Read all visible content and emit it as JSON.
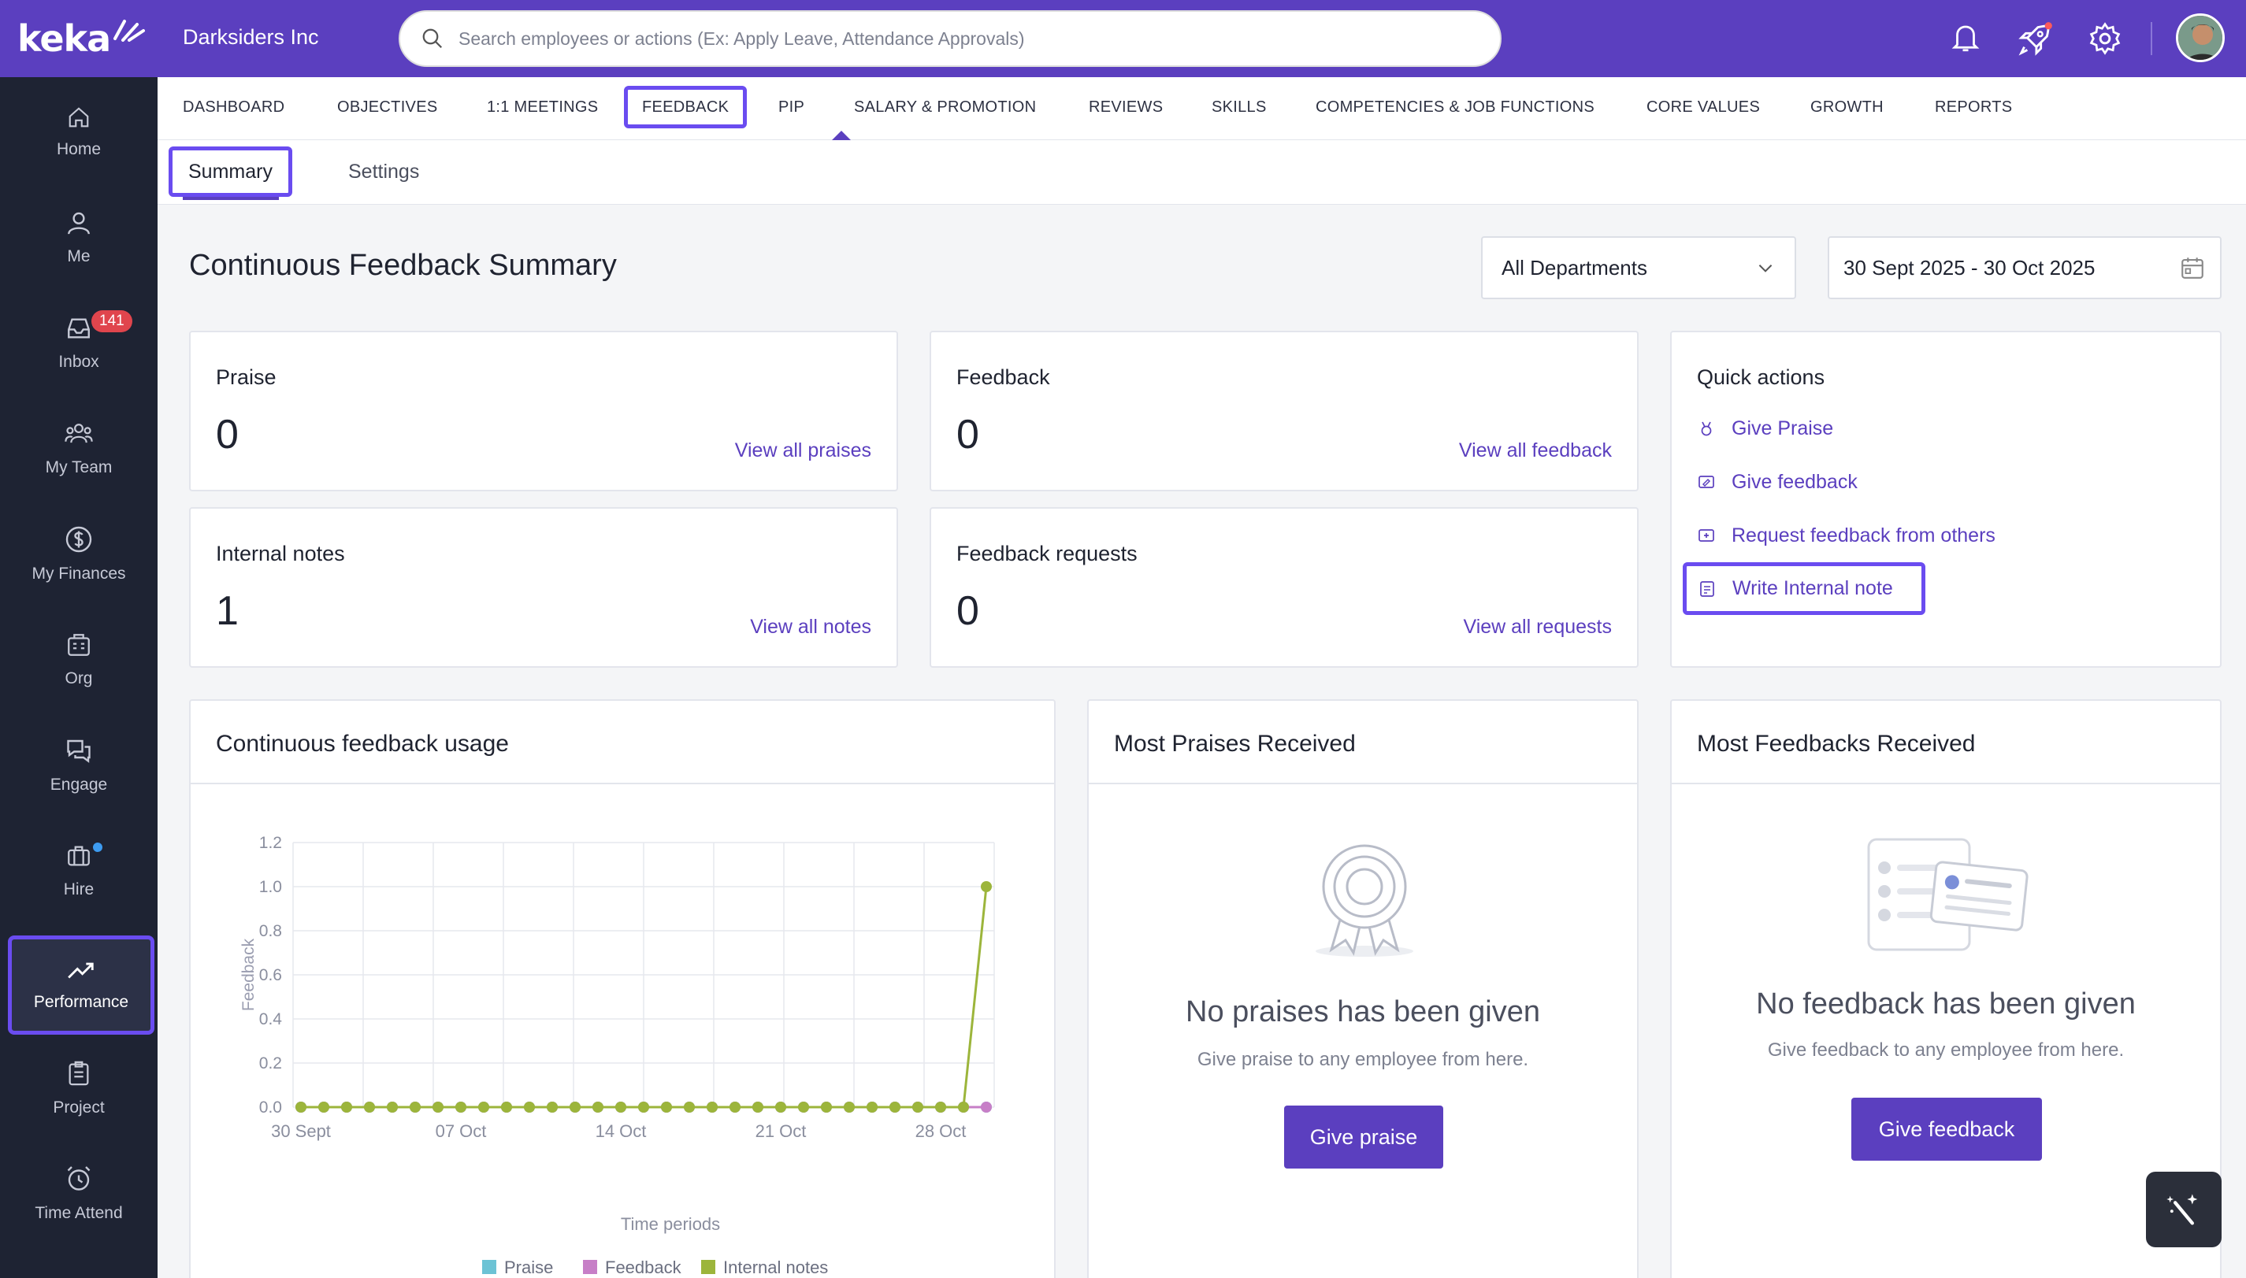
{
  "brand": {
    "logo_text": "keka",
    "company": "Darksiders Inc"
  },
  "search": {
    "placeholder": "Search employees or actions (Ex: Apply Leave, Attendance Approvals)"
  },
  "sidebar": {
    "items": [
      {
        "label": "Home",
        "icon": "home-icon"
      },
      {
        "label": "Me",
        "icon": "user-icon"
      },
      {
        "label": "Inbox",
        "icon": "inbox-icon",
        "badge": "141"
      },
      {
        "label": "My Team",
        "icon": "team-icon"
      },
      {
        "label": "My Finances",
        "icon": "dollar-icon"
      },
      {
        "label": "Org",
        "icon": "org-icon"
      },
      {
        "label": "Engage",
        "icon": "engage-icon"
      },
      {
        "label": "Hire",
        "icon": "briefcase-icon"
      },
      {
        "label": "Performance",
        "icon": "trend-icon",
        "active": true
      },
      {
        "label": "Project",
        "icon": "clipboard-icon"
      },
      {
        "label": "Time Attend",
        "icon": "clock-icon"
      }
    ]
  },
  "tabs": [
    "DASHBOARD",
    "OBJECTIVES",
    "1:1 MEETINGS",
    "FEEDBACK",
    "PIP",
    "SALARY & PROMOTION",
    "REVIEWS",
    "SKILLS",
    "COMPETENCIES & JOB FUNCTIONS",
    "CORE VALUES",
    "GROWTH",
    "REPORTS"
  ],
  "active_tab": "FEEDBACK",
  "subtabs": [
    "Summary",
    "Settings"
  ],
  "page": {
    "title": "Continuous Feedback Summary",
    "department_filter": "All Departments",
    "date_range": "30 Sept 2025 - 30 Oct 2025"
  },
  "stats": {
    "praise": {
      "label": "Praise",
      "value": "0",
      "link": "View all praises"
    },
    "feedback": {
      "label": "Feedback",
      "value": "0",
      "link": "View all feedback"
    },
    "internal_notes": {
      "label": "Internal notes",
      "value": "1",
      "link": "View all notes"
    },
    "feedback_requests": {
      "label": "Feedback requests",
      "value": "0",
      "link": "View all requests"
    }
  },
  "quick_actions": {
    "title": "Quick actions",
    "items": [
      "Give Praise",
      "Give feedback",
      "Request feedback from others",
      "Write Internal note"
    ]
  },
  "usage": {
    "title": "Continuous feedback usage"
  },
  "most_praises": {
    "title": "Most Praises Received",
    "empty_title": "No praises has been given",
    "empty_sub": "Give praise to any employee from here.",
    "button": "Give praise"
  },
  "most_feedbacks": {
    "title": "Most Feedbacks Received",
    "empty_title": "No feedback has been given",
    "empty_sub": "Give feedback to any employee from here.",
    "button": "Give feedback"
  },
  "colors": {
    "brand": "#5b3fbf",
    "sidebar": "#1e2333",
    "praise": "#6cc3d5",
    "feedback": "#c77fc7",
    "internal_notes": "#9cb53b"
  },
  "chart_data": {
    "type": "line",
    "xlabel": "Time periods",
    "ylabel": "Feedback",
    "ylim": [
      0,
      1.2
    ],
    "yticks": [
      "1.2",
      "1.0",
      "0.8",
      "0.6",
      "0.4",
      "0.2",
      "0.0"
    ],
    "xtick_labels": [
      "30 Sept",
      "07 Oct",
      "14 Oct",
      "21 Oct",
      "28 Oct"
    ],
    "num_points": 31,
    "series": [
      {
        "name": "Praise",
        "color": "#6cc3d5",
        "values": [
          0,
          0,
          0,
          0,
          0,
          0,
          0,
          0,
          0,
          0,
          0,
          0,
          0,
          0,
          0,
          0,
          0,
          0,
          0,
          0,
          0,
          0,
          0,
          0,
          0,
          0,
          0,
          0,
          0,
          0,
          0
        ]
      },
      {
        "name": "Feedback",
        "color": "#c77fc7",
        "values": [
          0,
          0,
          0,
          0,
          0,
          0,
          0,
          0,
          0,
          0,
          0,
          0,
          0,
          0,
          0,
          0,
          0,
          0,
          0,
          0,
          0,
          0,
          0,
          0,
          0,
          0,
          0,
          0,
          0,
          0,
          0
        ]
      },
      {
        "name": "Internal notes",
        "color": "#9cb53b",
        "values": [
          0,
          0,
          0,
          0,
          0,
          0,
          0,
          0,
          0,
          0,
          0,
          0,
          0,
          0,
          0,
          0,
          0,
          0,
          0,
          0,
          0,
          0,
          0,
          0,
          0,
          0,
          0,
          0,
          0,
          0,
          1
        ]
      }
    ]
  }
}
